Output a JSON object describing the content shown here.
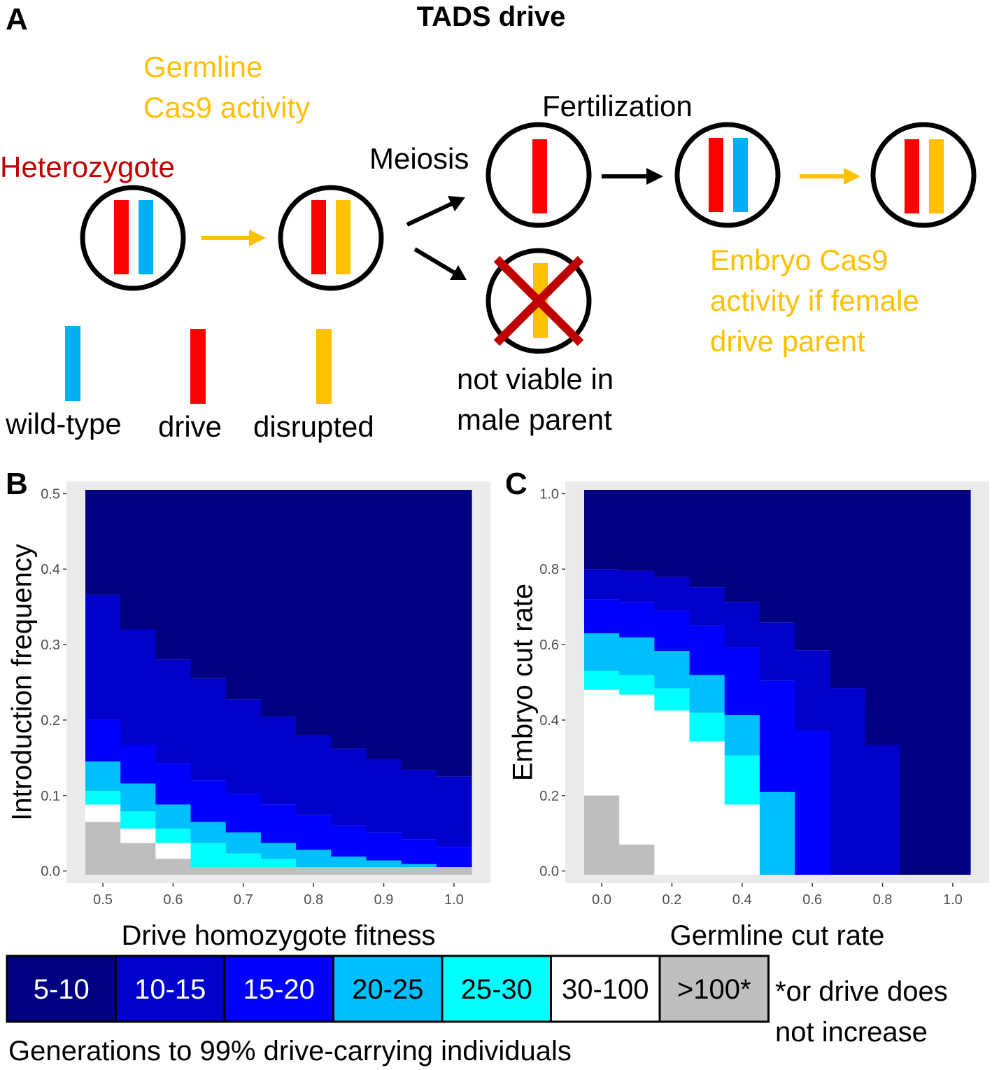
{
  "panel_labels": [
    "A",
    "B",
    "C"
  ],
  "diagram": {
    "title": "TADS drive",
    "germline_label": [
      "Germline",
      "Cas9 activity"
    ],
    "heterozygote": "Heterozygote",
    "meiosis": "Meiosis",
    "fertilization": "Fertilization",
    "not_viable": [
      "not viable in",
      "male parent"
    ],
    "embryo_label": [
      "Embryo Cas9",
      "activity if female",
      "drive parent"
    ],
    "allele_legend": [
      "wild-type",
      "drive",
      "disrupted"
    ]
  },
  "legend": {
    "items": [
      {
        "label": "5-10",
        "color": "#000080"
      },
      {
        "label": "10-15",
        "color": "#0000cd"
      },
      {
        "label": "15-20",
        "color": "#0000ff"
      },
      {
        "label": "20-25",
        "color": "#00bfff"
      },
      {
        "label": "25-30",
        "color": "#00ffff"
      },
      {
        "label": "30-100",
        "color": "#ffffff"
      },
      {
        "label": ">100*",
        "color": "#bebebe"
      }
    ],
    "note": [
      "*or drive does",
      "not increase"
    ],
    "title": "Generations to 99% drive-carrying individuals"
  },
  "chart_data": [
    {
      "type": "heatmap",
      "xlabel": "Drive homozygote fitness",
      "ylabel": "Introduction frequency",
      "x": [
        0.5,
        0.55,
        0.6,
        0.65,
        0.7,
        0.75,
        0.8,
        0.85,
        0.9,
        0.95,
        1.0
      ],
      "series": [
        {
          "values": [
            0.366,
            0.32,
            0.28,
            0.255,
            0.227,
            0.204,
            0.18,
            0.162,
            0.148,
            0.134,
            0.125
          ]
        },
        {
          "values": [
            0.2,
            0.167,
            0.143,
            0.12,
            0.102,
            0.088,
            0.074,
            0.06,
            0.051,
            0.042,
            0.032
          ]
        },
        {
          "values": [
            0.145,
            0.116,
            0.088,
            0.065,
            0.051,
            0.037,
            0.028,
            0.019,
            0.014,
            0.009,
            0.005
          ]
        },
        {
          "values": [
            0.106,
            0.079,
            0.056,
            0.037,
            0.023,
            0.016,
            0.005,
            0.005,
            0.005,
            0.005,
            0.005
          ]
        },
        {
          "values": [
            0.088,
            0.056,
            0.037,
            0.005,
            0.005,
            0.005,
            0.005,
            0.005,
            0.005,
            0.005,
            0.005
          ]
        },
        {
          "values": [
            0.065,
            0.037,
            0.016,
            0.005,
            0.005,
            0.005,
            0.005,
            0.005,
            0.005,
            0.005,
            0.005
          ]
        },
        {
          "values": [
            -0.005,
            -0.005,
            -0.005,
            -0.005,
            -0.005,
            -0.005,
            -0.005,
            -0.005,
            -0.005,
            -0.005,
            -0.005
          ]
        }
      ],
      "xlim": [
        0.475,
        1.025
      ],
      "ylim": [
        -0.005,
        0.505
      ],
      "xticks": [
        0.5,
        0.6,
        0.7,
        0.8,
        0.9,
        {
          "value": 1,
          "label": "1.0"
        }
      ],
      "yticks": [
        {
          "value": 0,
          "label": "0.0"
        },
        0.1,
        0.2,
        0.3,
        0.4,
        0.5
      ]
    },
    {
      "type": "heatmap",
      "xlabel": "Germline cut rate",
      "ylabel": "Embryo cut rate",
      "x": [
        0,
        0.1,
        0.2,
        0.3,
        0.4,
        0.5,
        0.6,
        0.7,
        0.8,
        0.9,
        1.0
      ],
      "series": [
        {
          "values": [
            0.8,
            0.795,
            0.779,
            0.752,
            0.713,
            0.658,
            0.585,
            0.485,
            0.334,
            -0.01,
            -0.01
          ]
        },
        {
          "values": [
            0.72,
            0.713,
            0.69,
            0.651,
            0.591,
            0.504,
            0.371,
            -0.01,
            -0.01,
            -0.01,
            -0.01
          ]
        },
        {
          "values": [
            0.63,
            0.619,
            0.583,
            0.519,
            0.413,
            0.209,
            -0.01,
            -0.01,
            -0.01,
            -0.01,
            -0.01
          ]
        },
        {
          "values": [
            0.53,
            0.519,
            0.484,
            0.419,
            0.306,
            -0.01,
            -0.01,
            -0.01,
            -0.01,
            -0.01,
            -0.01
          ]
        },
        {
          "values": [
            0.48,
            0.467,
            0.425,
            0.344,
            0.176,
            -0.01,
            -0.01,
            -0.01,
            -0.01,
            -0.01,
            -0.01
          ]
        },
        {
          "values": [
            0.2,
            0.07,
            -0.01,
            -0.01,
            -0.01,
            -0.01,
            -0.01,
            -0.01,
            -0.01,
            -0.01,
            -0.01
          ]
        },
        {
          "values": [
            -0.01,
            -0.01,
            -0.01,
            -0.01,
            -0.01,
            -0.01,
            -0.01,
            -0.01,
            -0.01,
            -0.01,
            -0.01
          ]
        }
      ],
      "xlim": [
        -0.05,
        1.05
      ],
      "ylim": [
        -0.01,
        1.01
      ],
      "xticks": [
        {
          "value": 0,
          "label": "0.0"
        },
        0.2,
        0.4,
        0.6,
        0.8,
        {
          "value": 1,
          "label": "1.0"
        }
      ],
      "yticks": [
        {
          "value": 0,
          "label": "0.0"
        },
        0.2,
        0.4,
        0.6,
        0.8,
        {
          "value": 1,
          "label": "1.0"
        }
      ]
    }
  ]
}
